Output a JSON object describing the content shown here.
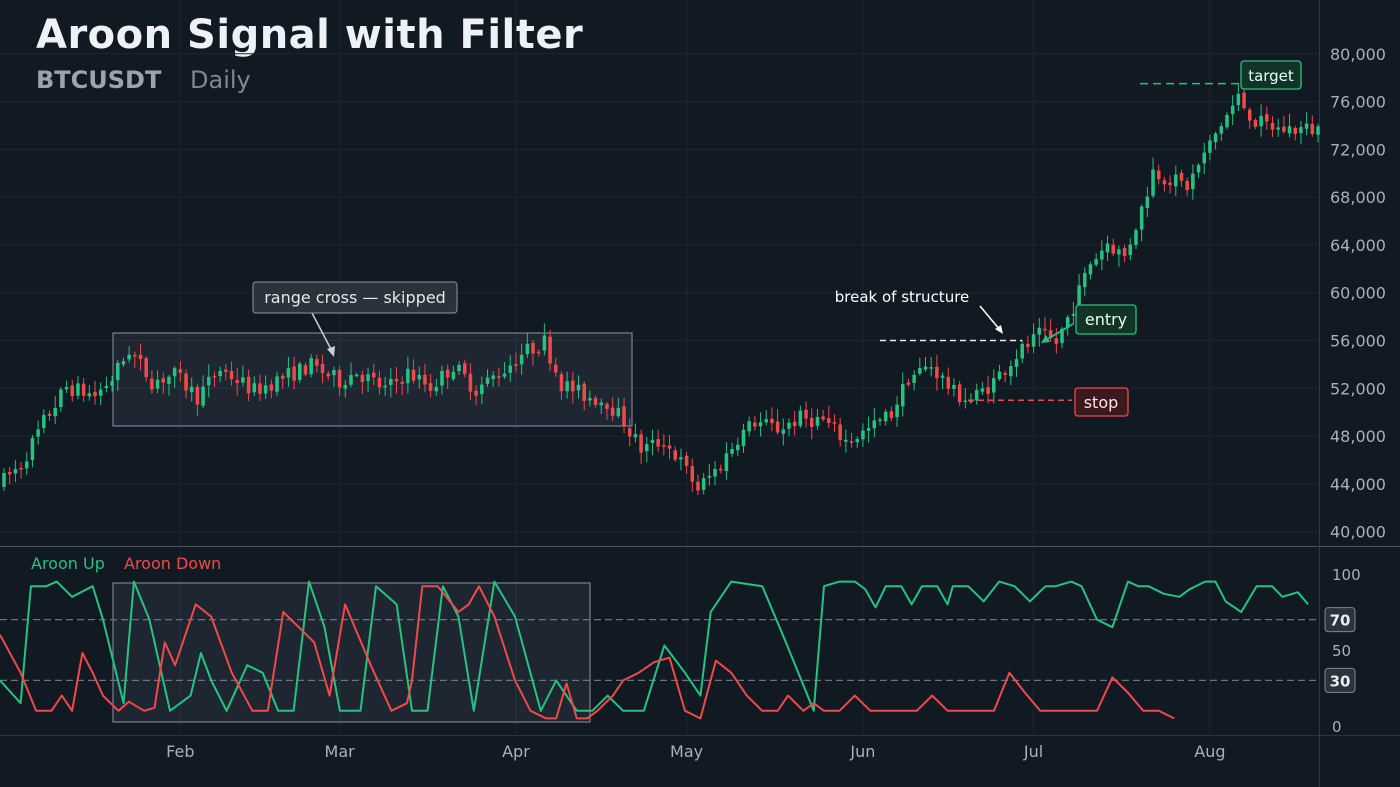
{
  "header": {
    "title": "Aroon Signal with Filter",
    "symbol": "BTCUSDT",
    "timeframe": "Daily"
  },
  "chart_data": [
    {
      "type": "candlestick",
      "name": "price",
      "y_ticks": [
        "80,000",
        "76,000",
        "72,000",
        "68,000",
        "64,000",
        "60,000",
        "56,000",
        "52,000",
        "48,000",
        "44,000",
        "40,000"
      ],
      "y_tick_values": [
        80000,
        76000,
        72000,
        68000,
        64000,
        60000,
        56000,
        52000,
        48000,
        44000,
        40000
      ],
      "ylim": [
        38800,
        84500
      ],
      "x_ticks": [
        "Feb",
        "Mar",
        "Apr",
        "May",
        "Jun",
        "Jul",
        "Aug"
      ],
      "x_tick_days": [
        31,
        59,
        90,
        120,
        151,
        181,
        212
      ],
      "days": 231,
      "anchors": [
        [
          0,
          43900
        ],
        [
          4,
          45600
        ],
        [
          8,
          49200
        ],
        [
          12,
          52100
        ],
        [
          17,
          51400
        ],
        [
          20,
          52800
        ],
        [
          23,
          55200
        ],
        [
          27,
          52600
        ],
        [
          31,
          53100
        ],
        [
          35,
          51300
        ],
        [
          39,
          53600
        ],
        [
          45,
          51800
        ],
        [
          50,
          52900
        ],
        [
          55,
          53900
        ],
        [
          60,
          52600
        ],
        [
          63,
          53400
        ],
        [
          68,
          51900
        ],
        [
          72,
          53300
        ],
        [
          76,
          52100
        ],
        [
          80,
          53900
        ],
        [
          84,
          51900
        ],
        [
          89,
          53600
        ],
        [
          92,
          54900
        ],
        [
          96,
          55900
        ],
        [
          99,
          52400
        ],
        [
          103,
          51400
        ],
        [
          107,
          50900
        ],
        [
          110,
          49200
        ],
        [
          113,
          46900
        ],
        [
          117,
          47600
        ],
        [
          120,
          45800
        ],
        [
          123,
          43600
        ],
        [
          127,
          45600
        ],
        [
          130,
          47900
        ],
        [
          133,
          49200
        ],
        [
          137,
          48600
        ],
        [
          141,
          49500
        ],
        [
          145,
          49300
        ],
        [
          149,
          47600
        ],
        [
          153,
          48500
        ],
        [
          157,
          49900
        ],
        [
          160,
          52900
        ],
        [
          164,
          53900
        ],
        [
          168,
          51600
        ],
        [
          171,
          51000
        ],
        [
          175,
          52600
        ],
        [
          179,
          54800
        ],
        [
          183,
          56400
        ],
        [
          186,
          55800
        ],
        [
          189,
          58900
        ],
        [
          192,
          62500
        ],
        [
          195,
          64200
        ],
        [
          198,
          63000
        ],
        [
          201,
          67000
        ],
        [
          203,
          70200
        ],
        [
          206,
          69500
        ],
        [
          209,
          68900
        ],
        [
          212,
          71500
        ],
        [
          215,
          74100
        ],
        [
          218,
          76300
        ],
        [
          221,
          74300
        ],
        [
          225,
          73700
        ],
        [
          230,
          73700
        ]
      ],
      "annotations": {
        "range_box": "range cross — skipped",
        "bos_label": "break of structure",
        "bos_level": 56000,
        "entry_label": "entry",
        "entry_level": 55400,
        "stop_label": "stop",
        "stop_level": 51000,
        "target_label": "target",
        "target_level": 77500
      }
    },
    {
      "type": "line",
      "name": "aroon",
      "y_ticks": [
        "100",
        "50",
        "0"
      ],
      "ylim": [
        0,
        100
      ],
      "levels": [
        "70",
        "30"
      ],
      "level_values": [
        70,
        30
      ],
      "series": [
        {
          "name": "Aroon Up",
          "color": "#26c281",
          "points": [
            [
              0,
              30
            ],
            [
              4,
              15
            ],
            [
              6,
              92
            ],
            [
              9,
              92
            ],
            [
              11,
              95
            ],
            [
              14,
              85
            ],
            [
              18,
              92
            ],
            [
              20,
              70
            ],
            [
              24,
              15
            ],
            [
              26,
              95
            ],
            [
              29,
              70
            ],
            [
              33,
              10
            ],
            [
              37,
              20
            ],
            [
              39,
              48
            ],
            [
              41,
              30
            ],
            [
              44,
              10
            ],
            [
              48,
              40
            ],
            [
              51,
              35
            ],
            [
              54,
              10
            ],
            [
              57,
              10
            ],
            [
              60,
              95
            ],
            [
              63,
              65
            ],
            [
              66,
              10
            ],
            [
              70,
              10
            ],
            [
              73,
              92
            ],
            [
              77,
              80
            ],
            [
              80,
              10
            ],
            [
              83,
              10
            ],
            [
              86,
              92
            ],
            [
              89,
              72
            ],
            [
              92,
              10
            ],
            [
              96,
              95
            ],
            [
              100,
              72
            ],
            [
              105,
              10
            ],
            [
              108,
              30
            ],
            [
              112,
              10
            ],
            [
              115,
              10
            ],
            [
              118,
              20
            ],
            [
              121,
              10
            ],
            [
              125,
              10
            ],
            [
              129,
              53
            ],
            [
              133,
              35
            ],
            [
              136,
              20
            ],
            [
              138,
              75
            ],
            [
              142,
              95
            ],
            [
              148,
              92
            ],
            [
              152,
              60
            ],
            [
              155,
              35
            ],
            [
              158,
              10
            ],
            [
              160,
              92
            ],
            [
              163,
              95
            ],
            [
              166,
              95
            ],
            [
              168,
              90
            ],
            [
              170,
              78
            ],
            [
              172,
              92
            ],
            [
              175,
              92
            ],
            [
              177,
              80
            ],
            [
              179,
              92
            ],
            [
              182,
              92
            ],
            [
              184,
              80
            ],
            [
              185,
              92
            ],
            [
              188,
              92
            ],
            [
              191,
              82
            ],
            [
              194,
              95
            ],
            [
              197,
              92
            ],
            [
              200,
              82
            ],
            [
              203,
              92
            ],
            [
              205,
              92
            ],
            [
              208,
              95
            ],
            [
              210,
              92
            ],
            [
              213,
              70
            ],
            [
              216,
              65
            ],
            [
              219,
              95
            ],
            [
              221,
              92
            ],
            [
              223,
              92
            ],
            [
              226,
              87
            ],
            [
              229,
              85
            ],
            [
              231,
              90
            ],
            [
              234,
              95
            ],
            [
              236,
              95
            ],
            [
              238,
              82
            ],
            [
              241,
              75
            ],
            [
              244,
              92
            ],
            [
              247,
              92
            ],
            [
              249,
              85
            ],
            [
              252,
              88
            ],
            [
              254,
              80
            ]
          ]
        },
        {
          "name": "Aroon Down",
          "color": "#ef4a4a",
          "points": [
            [
              0,
              60
            ],
            [
              4,
              35
            ],
            [
              7,
              10
            ],
            [
              10,
              10
            ],
            [
              12,
              20
            ],
            [
              14,
              10
            ],
            [
              16,
              48
            ],
            [
              18,
              35
            ],
            [
              20,
              20
            ],
            [
              23,
              10
            ],
            [
              25,
              16
            ],
            [
              28,
              10
            ],
            [
              30,
              12
            ],
            [
              32,
              55
            ],
            [
              34,
              40
            ],
            [
              38,
              80
            ],
            [
              41,
              72
            ],
            [
              45,
              35
            ],
            [
              49,
              10
            ],
            [
              52,
              10
            ],
            [
              55,
              75
            ],
            [
              58,
              65
            ],
            [
              61,
              55
            ],
            [
              64,
              20
            ],
            [
              67,
              80
            ],
            [
              72,
              40
            ],
            [
              76,
              10
            ],
            [
              79,
              15
            ],
            [
              80,
              30
            ],
            [
              82,
              92
            ],
            [
              85,
              92
            ],
            [
              89,
              75
            ],
            [
              91,
              80
            ],
            [
              93,
              92
            ],
            [
              96,
              72
            ],
            [
              100,
              30
            ],
            [
              103,
              10
            ],
            [
              106,
              5
            ],
            [
              108,
              5
            ],
            [
              110,
              28
            ],
            [
              112,
              5
            ],
            [
              114,
              5
            ],
            [
              116,
              10
            ],
            [
              119,
              20
            ],
            [
              121,
              30
            ],
            [
              124,
              35
            ],
            [
              127,
              42
            ],
            [
              130,
              45
            ],
            [
              133,
              10
            ],
            [
              136,
              5
            ],
            [
              139,
              43
            ],
            [
              142,
              35
            ],
            [
              145,
              20
            ],
            [
              148,
              10
            ],
            [
              151,
              10
            ],
            [
              153,
              20
            ],
            [
              156,
              10
            ],
            [
              158,
              15
            ],
            [
              160,
              10
            ],
            [
              163,
              10
            ],
            [
              166,
              20
            ],
            [
              169,
              10
            ],
            [
              172,
              10
            ],
            [
              175,
              10
            ],
            [
              178,
              10
            ],
            [
              181,
              20
            ],
            [
              184,
              10
            ],
            [
              187,
              10
            ],
            [
              190,
              10
            ],
            [
              193,
              10
            ],
            [
              196,
              35
            ],
            [
              199,
              22
            ],
            [
              202,
              10
            ],
            [
              205,
              10
            ],
            [
              208,
              10
            ],
            [
              210,
              10
            ],
            [
              213,
              10
            ],
            [
              216,
              32
            ],
            [
              219,
              22
            ],
            [
              222,
              10
            ],
            [
              225,
              10
            ],
            [
              228,
              5
            ]
          ]
        }
      ],
      "annotations": {
        "range_box": ""
      }
    }
  ],
  "colors": {
    "up": "#26c281",
    "down": "#ef4a4a",
    "background": "#111923",
    "grid": "#1d2733",
    "axis_text": "#a7b0bb"
  }
}
